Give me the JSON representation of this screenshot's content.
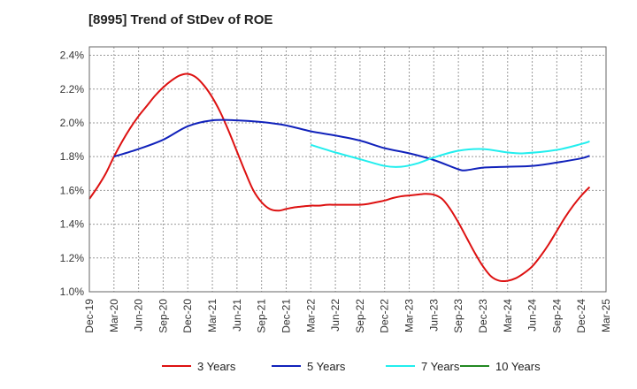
{
  "chart_data": {
    "type": "line",
    "title": "[8995]  Trend of StDev of ROE",
    "xlabel": "",
    "ylabel": "",
    "x_ticks": [
      "Dec-19",
      "Mar-20",
      "Jun-20",
      "Sep-20",
      "Dec-20",
      "Mar-21",
      "Jun-21",
      "Sep-21",
      "Dec-21",
      "Mar-22",
      "Jun-22",
      "Sep-22",
      "Dec-22",
      "Mar-23",
      "Jun-23",
      "Sep-23",
      "Dec-23",
      "Mar-24",
      "Jun-24",
      "Sep-24",
      "Dec-24",
      "Mar-25"
    ],
    "y_ticks": [
      "1.0%",
      "1.2%",
      "1.4%",
      "1.6%",
      "1.8%",
      "2.0%",
      "2.2%",
      "2.4%"
    ],
    "ylim": [
      1.0,
      2.45
    ],
    "grid": true,
    "legend_position": "bottom",
    "series": [
      {
        "name": "3 Years",
        "color": "#dd1111",
        "points": [
          [
            "Dec-19",
            1.55
          ],
          [
            "Jan-20",
            1.62
          ],
          [
            "Feb-20",
            1.7
          ],
          [
            "Mar-20",
            1.8
          ],
          [
            "Apr-20",
            1.89
          ],
          [
            "May-20",
            1.97
          ],
          [
            "Jun-20",
            2.04
          ],
          [
            "Jul-20",
            2.1
          ],
          [
            "Aug-20",
            2.16
          ],
          [
            "Sep-20",
            2.21
          ],
          [
            "Oct-20",
            2.25
          ],
          [
            "Nov-20",
            2.28
          ],
          [
            "Dec-20",
            2.29
          ],
          [
            "Jan-21",
            2.27
          ],
          [
            "Feb-21",
            2.22
          ],
          [
            "Mar-21",
            2.15
          ],
          [
            "Apr-21",
            2.06
          ],
          [
            "May-21",
            1.95
          ],
          [
            "Jun-21",
            1.83
          ],
          [
            "Jul-21",
            1.71
          ],
          [
            "Aug-21",
            1.6
          ],
          [
            "Sep-21",
            1.53
          ],
          [
            "Oct-21",
            1.49
          ],
          [
            "Nov-21",
            1.48
          ],
          [
            "Dec-21",
            1.49
          ],
          [
            "Jan-22",
            1.5
          ],
          [
            "Feb-22",
            1.505
          ],
          [
            "Mar-22",
            1.51
          ],
          [
            "Apr-22",
            1.51
          ],
          [
            "May-22",
            1.515
          ],
          [
            "Jun-22",
            1.515
          ],
          [
            "Jul-22",
            1.515
          ],
          [
            "Aug-22",
            1.515
          ],
          [
            "Sep-22",
            1.515
          ],
          [
            "Oct-22",
            1.52
          ],
          [
            "Nov-22",
            1.53
          ],
          [
            "Dec-22",
            1.54
          ],
          [
            "Jan-23",
            1.555
          ],
          [
            "Feb-23",
            1.565
          ],
          [
            "Mar-23",
            1.57
          ],
          [
            "Apr-23",
            1.575
          ],
          [
            "May-23",
            1.58
          ],
          [
            "Jun-23",
            1.575
          ],
          [
            "Jul-23",
            1.55
          ],
          [
            "Aug-23",
            1.49
          ],
          [
            "Sep-23",
            1.41
          ],
          [
            "Oct-23",
            1.32
          ],
          [
            "Nov-23",
            1.23
          ],
          [
            "Dec-23",
            1.15
          ],
          [
            "Jan-24",
            1.09
          ],
          [
            "Feb-24",
            1.065
          ],
          [
            "Mar-24",
            1.065
          ],
          [
            "Apr-24",
            1.08
          ],
          [
            "May-24",
            1.11
          ],
          [
            "Jun-24",
            1.15
          ],
          [
            "Jul-24",
            1.21
          ],
          [
            "Aug-24",
            1.28
          ],
          [
            "Sep-24",
            1.36
          ],
          [
            "Oct-24",
            1.44
          ],
          [
            "Nov-24",
            1.51
          ],
          [
            "Dec-24",
            1.57
          ],
          [
            "Jan-25",
            1.62
          ]
        ]
      },
      {
        "name": "5 Years",
        "color": "#1122bb",
        "points": [
          [
            "Mar-20",
            1.8
          ],
          [
            "Jun-20",
            1.845
          ],
          [
            "Sep-20",
            1.9
          ],
          [
            "Dec-20",
            1.98
          ],
          [
            "Mar-21",
            2.015
          ],
          [
            "Jun-21",
            2.015
          ],
          [
            "Sep-21",
            2.005
          ],
          [
            "Dec-21",
            1.985
          ],
          [
            "Mar-22",
            1.95
          ],
          [
            "Jun-22",
            1.925
          ],
          [
            "Sep-22",
            1.895
          ],
          [
            "Dec-22",
            1.85
          ],
          [
            "Mar-23",
            1.82
          ],
          [
            "Jun-23",
            1.78
          ],
          [
            "Sep-23",
            1.725
          ],
          [
            "Oct-23",
            1.72
          ],
          [
            "Dec-23",
            1.735
          ],
          [
            "Mar-24",
            1.74
          ],
          [
            "Jun-24",
            1.745
          ],
          [
            "Sep-24",
            1.765
          ],
          [
            "Dec-24",
            1.79
          ],
          [
            "Jan-25",
            1.805
          ]
        ]
      },
      {
        "name": "7 Years",
        "color": "#22eeee",
        "points": [
          [
            "Mar-22",
            1.87
          ],
          [
            "Jun-22",
            1.825
          ],
          [
            "Sep-22",
            1.785
          ],
          [
            "Dec-22",
            1.745
          ],
          [
            "Feb-23",
            1.74
          ],
          [
            "Apr-23",
            1.76
          ],
          [
            "Jun-23",
            1.795
          ],
          [
            "Sep-23",
            1.835
          ],
          [
            "Dec-23",
            1.845
          ],
          [
            "Mar-24",
            1.825
          ],
          [
            "May-24",
            1.82
          ],
          [
            "Sep-24",
            1.84
          ],
          [
            "Dec-24",
            1.875
          ],
          [
            "Jan-25",
            1.89
          ]
        ]
      },
      {
        "name": "10 Years",
        "color": "#228822",
        "points": []
      }
    ]
  }
}
